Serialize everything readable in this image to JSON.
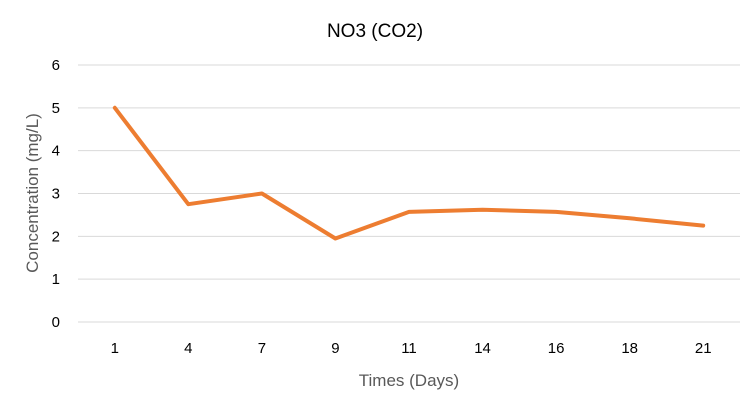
{
  "chart_data": {
    "type": "line",
    "title": "NO3 (CO2)",
    "xlabel": "Times (Days)",
    "ylabel": "Concentration (mg/L)",
    "categories": [
      "1",
      "4",
      "7",
      "9",
      "11",
      "14",
      "16",
      "18",
      "21"
    ],
    "series": [
      {
        "color": "#ed7d31",
        "values": [
          5.0,
          2.75,
          3.0,
          1.95,
          2.57,
          2.62,
          2.57,
          2.42,
          2.25
        ]
      }
    ],
    "ylim": [
      0,
      6
    ],
    "yticks": [
      "0",
      "1",
      "2",
      "3",
      "4",
      "5",
      "6"
    ],
    "grid": true,
    "legend": "none"
  }
}
